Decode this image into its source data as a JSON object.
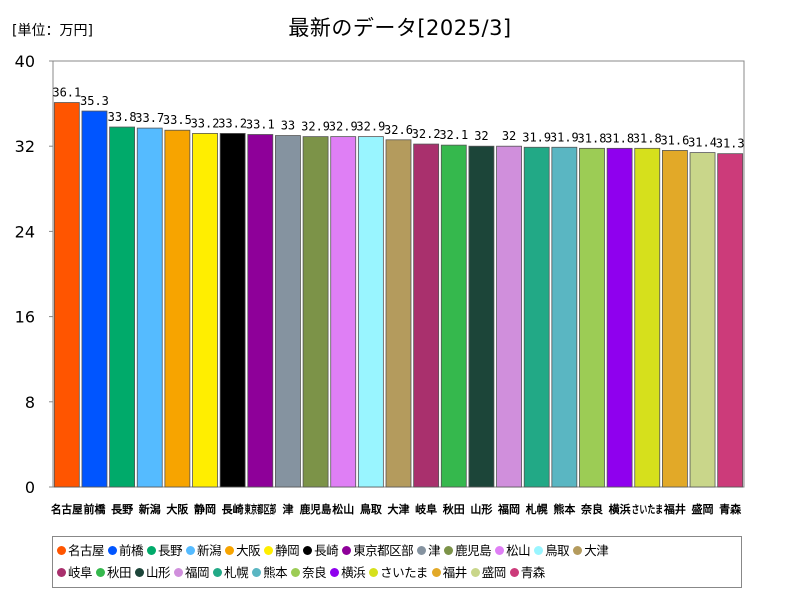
{
  "unit_label": "[単位：万円]",
  "title": "最新のデータ[2025/3]",
  "chart_data": {
    "type": "bar",
    "title": "最新のデータ[2025/3]",
    "unit": "[単位：万円]",
    "xlabel": "",
    "ylabel": "",
    "ylim": [
      0,
      40
    ],
    "yticks": [
      0,
      8,
      16,
      24,
      32,
      40
    ],
    "grid": false,
    "legend_position": "bottom",
    "categories": [
      "名古屋",
      "前橋",
      "長野",
      "新潟",
      "大阪",
      "静岡",
      "長崎",
      "東京都区部",
      "津",
      "鹿児島",
      "松山",
      "鳥取",
      "大津",
      "岐阜",
      "秋田",
      "山形",
      "福岡",
      "札幌",
      "熊本",
      "奈良",
      "横浜",
      "さいたま",
      "福井",
      "盛岡",
      "青森"
    ],
    "values": [
      36.1,
      35.3,
      33.8,
      33.7,
      33.5,
      33.2,
      33.2,
      33.1,
      33,
      32.9,
      32.9,
      32.9,
      32.6,
      32.2,
      32.1,
      32,
      32,
      31.9,
      31.9,
      31.8,
      31.8,
      31.8,
      31.6,
      31.4,
      31.3
    ],
    "value_labels": [
      "36.1",
      "35.3",
      "33.8",
      "33.7",
      "33.5",
      "33.2",
      "33.2",
      "33.1",
      "33",
      "32.9",
      "32.9",
      "32.9",
      "32.6",
      "32.2",
      "32.1",
      "32",
      "32",
      "31.9",
      "31.9",
      "31.8",
      "31.8",
      "31.8",
      "31.6",
      "31.4",
      "31.3"
    ],
    "colors": [
      "#ff5500",
      "#0055ff",
      "#00aa6a",
      "#55bbff",
      "#f7a400",
      "#ffee00",
      "#000000",
      "#8e0099",
      "#8593a0",
      "#7c9348",
      "#df7ff5",
      "#99f5ff",
      "#b49b5d",
      "#a9306d",
      "#35b84d",
      "#1c4539",
      "#d08fdc",
      "#22a986",
      "#5ab6c2",
      "#9ccc55",
      "#8f00ee",
      "#d6e01c",
      "#e2a928",
      "#c9d68a",
      "#cc3b7a"
    ]
  },
  "legend": {
    "rows": [
      [
        0,
        1,
        2,
        3,
        4,
        5,
        6,
        7,
        8,
        9,
        10,
        11,
        12
      ],
      [
        13,
        14,
        15,
        16,
        17,
        18,
        19,
        20,
        21,
        22,
        23,
        24
      ]
    ]
  }
}
